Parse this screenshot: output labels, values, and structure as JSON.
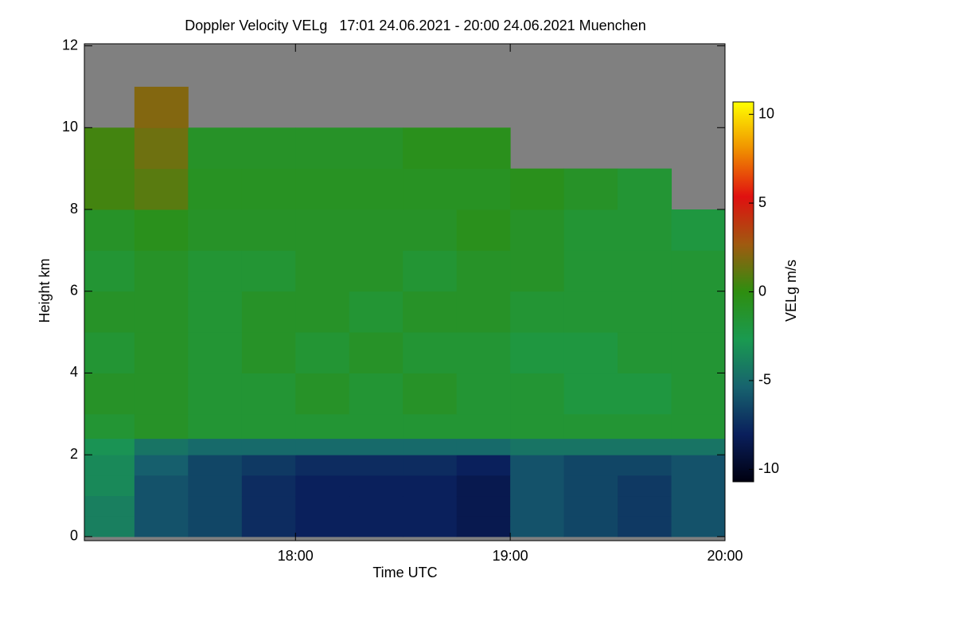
{
  "chart_data": {
    "type": "heatmap",
    "title": "Doppler Velocity VELg   17:01 24.06.2021 - 20:00 24.06.2021 Muenchen",
    "x_label": "Time UTC",
    "y_label": "Height km",
    "colorbar_label": "VELg m/s",
    "x_bins": [
      17.017,
      17.25,
      17.5,
      17.75,
      18.0,
      18.25,
      18.5,
      18.75,
      19.0,
      19.25,
      19.5,
      19.75,
      20.0
    ],
    "y_bins": [
      0,
      0.5,
      1,
      1.5,
      2,
      2.4,
      3,
      4,
      5,
      6,
      7,
      8,
      9,
      10,
      11,
      12
    ],
    "values": [
      [
        -4,
        -6,
        -6.5,
        -7.5,
        -8,
        -8,
        -8,
        -8.5,
        -6,
        -6.5,
        -7,
        -6
      ],
      [
        -4,
        -6,
        -6.5,
        -7.5,
        -8,
        -8,
        -8,
        -8.5,
        -6,
        -6.5,
        -7,
        -6
      ],
      [
        -3.5,
        -6,
        -6.5,
        -7.5,
        -8,
        -8,
        -8,
        -8.5,
        -6,
        -6.5,
        -7,
        -6
      ],
      [
        -3.5,
        -5.5,
        -6.5,
        -7,
        -7.5,
        -7.5,
        -7.5,
        -8,
        -6,
        -6.5,
        -6.5,
        -6
      ],
      [
        -3,
        -4.5,
        -5,
        -5,
        -5,
        -5,
        -5,
        -5,
        -4.5,
        -4.5,
        -4.5,
        -4.5
      ],
      [
        -1.5,
        -1,
        -1.5,
        -1.5,
        -1.5,
        -1.5,
        -1.5,
        -1.5,
        -1.5,
        -1.5,
        -1.5,
        -1.5
      ],
      [
        -1,
        -1,
        -1.5,
        -1.5,
        -1,
        -1.5,
        -1,
        -1.5,
        -1.5,
        -2,
        -2,
        -1.5
      ],
      [
        -1.5,
        -1,
        -1.5,
        -1,
        -1.5,
        -1,
        -1.5,
        -1.5,
        -2,
        -2,
        -1.5,
        -1.5
      ],
      [
        -1,
        -1,
        -1.5,
        -1,
        -1,
        -1.5,
        -1,
        -1,
        -1.5,
        -1.5,
        -1.5,
        -1.5
      ],
      [
        -1.5,
        -1,
        -1.5,
        -1.5,
        -1,
        -1,
        -1.5,
        -1,
        -1,
        -1.5,
        -1.5,
        -1.5
      ],
      [
        -1,
        -0.5,
        -1,
        -1,
        -1,
        -1,
        -1,
        -0.5,
        -1,
        -1.5,
        -1.5,
        -2
      ],
      [
        0.5,
        1,
        -0.8,
        -0.8,
        -0.8,
        -0.8,
        -0.8,
        -0.8,
        -0.5,
        -1,
        -1.5,
        null
      ],
      [
        0.5,
        1.5,
        -1,
        -1,
        -1,
        -1,
        -0.5,
        -0.5,
        null,
        null,
        null,
        null
      ],
      [
        null,
        2,
        null,
        null,
        null,
        null,
        null,
        null,
        null,
        null,
        null,
        null
      ],
      [
        null,
        null,
        null,
        null,
        null,
        null,
        null,
        null,
        null,
        null,
        null,
        null
      ]
    ],
    "xlim": [
      17.017,
      20.0
    ],
    "ylim": [
      -0.1,
      12.05
    ],
    "xticks": [
      {
        "value": 18,
        "label": "18:00"
      },
      {
        "value": 19,
        "label": "19:00"
      },
      {
        "value": 20,
        "label": "20:00"
      }
    ],
    "yticks": [
      0,
      2,
      4,
      6,
      8,
      10,
      12
    ],
    "clim": [
      -10.7,
      10.7
    ],
    "cticks": [
      -10,
      -5,
      0,
      5,
      10
    ],
    "colorscale": [
      "#000010",
      "#0a1f5c",
      "#17636e",
      "#1a9a50",
      "#2e8e10",
      "#a05a10",
      "#e01010",
      "#f09000",
      "#ffff00"
    ],
    "nodata_color": "#808080"
  }
}
